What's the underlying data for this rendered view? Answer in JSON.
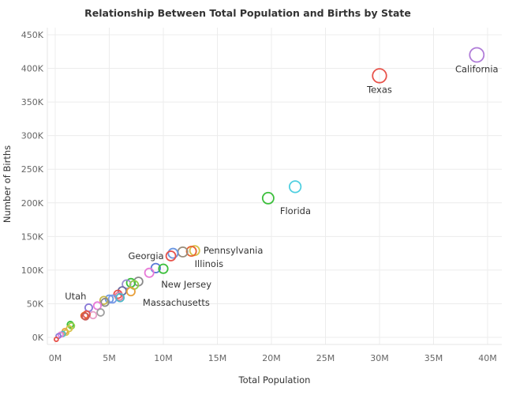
{
  "chart_data": {
    "type": "scatter",
    "title": "Relationship Between Total Population and Births by State",
    "xlabel": "Total Population",
    "ylabel": "Number of Births",
    "xlim": [
      0,
      40000000
    ],
    "ylim": [
      0,
      450000
    ],
    "x_ticks": [
      {
        "value": 0,
        "label": "0M"
      },
      {
        "value": 5000000,
        "label": "5M"
      },
      {
        "value": 10000000,
        "label": "10M"
      },
      {
        "value": 15000000,
        "label": "15M"
      },
      {
        "value": 20000000,
        "label": "20M"
      },
      {
        "value": 25000000,
        "label": "25M"
      },
      {
        "value": 30000000,
        "label": "30M"
      },
      {
        "value": 35000000,
        "label": "35M"
      },
      {
        "value": 40000000,
        "label": "40M"
      }
    ],
    "y_ticks": [
      {
        "value": 0,
        "label": "0K"
      },
      {
        "value": 50000,
        "label": "50K"
      },
      {
        "value": 100000,
        "label": "100K"
      },
      {
        "value": 150000,
        "label": "150K"
      },
      {
        "value": 200000,
        "label": "200K"
      },
      {
        "value": 250000,
        "label": "250K"
      },
      {
        "value": 300000,
        "label": "300K"
      },
      {
        "value": 350000,
        "label": "350K"
      },
      {
        "value": 400000,
        "label": "400K"
      },
      {
        "value": 450000,
        "label": "450K"
      }
    ],
    "grid": true,
    "points": [
      {
        "x": 39000000,
        "y": 420000,
        "color": "#b07cd8",
        "label": "California",
        "label_pos": "below"
      },
      {
        "x": 30000000,
        "y": 389000,
        "color": "#e8524a",
        "label": "Texas",
        "label_pos": "below"
      },
      {
        "x": 22200000,
        "y": 224000,
        "color": "#4fcfe0",
        "label": "",
        "label_pos": ""
      },
      {
        "x": 19700000,
        "y": 207000,
        "color": "#3cbf3c",
        "label": "Florida",
        "label_pos": "below-right"
      },
      {
        "x": 12900000,
        "y": 129000,
        "color": "#d6c24a",
        "label": "Pennsylvania",
        "label_pos": "right"
      },
      {
        "x": 12600000,
        "y": 128000,
        "color": "#e8632f",
        "label": "",
        "label_pos": ""
      },
      {
        "x": 11800000,
        "y": 127000,
        "color": "#9a8f7e",
        "label": "Illinois",
        "label_pos": "below-right"
      },
      {
        "x": 10900000,
        "y": 125000,
        "color": "#6c96e0",
        "label": "",
        "label_pos": ""
      },
      {
        "x": 10700000,
        "y": 121000,
        "color": "#e8524a",
        "label": "Georgia",
        "label_pos": "left"
      },
      {
        "x": 9300000,
        "y": 103000,
        "color": "#5a7ad8",
        "label": "",
        "label_pos": ""
      },
      {
        "x": 10000000,
        "y": 102000,
        "color": "#3cbf3c",
        "label": "",
        "label_pos": ""
      },
      {
        "x": 8700000,
        "y": 96000,
        "color": "#e87ad8",
        "label": "New Jersey",
        "label_pos": "below-right"
      },
      {
        "x": 7700000,
        "y": 83000,
        "color": "#8a8a8a",
        "label": "",
        "label_pos": ""
      },
      {
        "x": 7000000,
        "y": 81000,
        "color": "#3cbf3c",
        "label": "",
        "label_pos": ""
      },
      {
        "x": 6600000,
        "y": 79000,
        "color": "#9a8fd0",
        "label": "",
        "label_pos": ""
      },
      {
        "x": 7300000,
        "y": 78000,
        "color": "#8fcf4a",
        "label": "",
        "label_pos": ""
      },
      {
        "x": 6200000,
        "y": 69000,
        "color": "#6a6aa0",
        "label": "",
        "label_pos": ""
      },
      {
        "x": 7000000,
        "y": 68000,
        "color": "#e8a03c",
        "label": "Massachusetts",
        "label_pos": "below-right"
      },
      {
        "x": 5800000,
        "y": 64000,
        "color": "#e8524a",
        "label": "",
        "label_pos": ""
      },
      {
        "x": 5900000,
        "y": 61000,
        "color": "#e87a9a",
        "label": "",
        "label_pos": ""
      },
      {
        "x": 5000000,
        "y": 57000,
        "color": "#6c96e0",
        "label": "",
        "label_pos": ""
      },
      {
        "x": 5300000,
        "y": 57000,
        "color": "#7a9ae8",
        "label": "",
        "label_pos": ""
      },
      {
        "x": 6000000,
        "y": 59000,
        "color": "#4fb8c8",
        "label": "",
        "label_pos": ""
      },
      {
        "x": 4500000,
        "y": 55000,
        "color": "#c8b84a",
        "label": "",
        "label_pos": ""
      },
      {
        "x": 4600000,
        "y": 52000,
        "color": "#8a8a8a",
        "label": "",
        "label_pos": ""
      },
      {
        "x": 3900000,
        "y": 47000,
        "color": "#e87ad8",
        "label": "",
        "label_pos": ""
      },
      {
        "x": 3100000,
        "y": 44000,
        "color": "#8a7ad8",
        "label": "Utah",
        "label_pos": "above-left"
      },
      {
        "x": 4200000,
        "y": 37000,
        "color": "#a0a0a0",
        "label": "",
        "label_pos": ""
      },
      {
        "x": 3500000,
        "y": 33000,
        "color": "#e8a0c8",
        "label": "",
        "label_pos": ""
      },
      {
        "x": 2900000,
        "y": 34000,
        "color": "#e8524a",
        "label": "",
        "label_pos": ""
      },
      {
        "x": 2700000,
        "y": 32000,
        "color": "#e8632f",
        "label": "",
        "label_pos": ""
      },
      {
        "x": 2800000,
        "y": 31000,
        "color": "#c85a5a",
        "label": "",
        "label_pos": ""
      },
      {
        "x": 1400000,
        "y": 19000,
        "color": "#3cbf3c",
        "label": "",
        "label_pos": ""
      },
      {
        "x": 1500000,
        "y": 17000,
        "color": "#8fcf4a",
        "label": "",
        "label_pos": ""
      },
      {
        "x": 1300000,
        "y": 13000,
        "color": "#d6c24a",
        "label": "",
        "label_pos": ""
      },
      {
        "x": 900000,
        "y": 9000,
        "color": "#e8a03c",
        "label": "",
        "label_pos": ""
      },
      {
        "x": 1000000,
        "y": 7000,
        "color": "#d6c24a",
        "label": "",
        "label_pos": ""
      },
      {
        "x": 700000,
        "y": 5000,
        "color": "#4fb8c8",
        "label": "",
        "label_pos": ""
      },
      {
        "x": 500000,
        "y": 4000,
        "color": "#e87ad8",
        "label": "",
        "label_pos": ""
      },
      {
        "x": 300000,
        "y": 2000,
        "color": "#8a7ad8",
        "label": "",
        "label_pos": ""
      },
      {
        "x": 100000,
        "y": -3000,
        "color": "#e8524a",
        "label": "",
        "label_pos": ""
      }
    ]
  }
}
